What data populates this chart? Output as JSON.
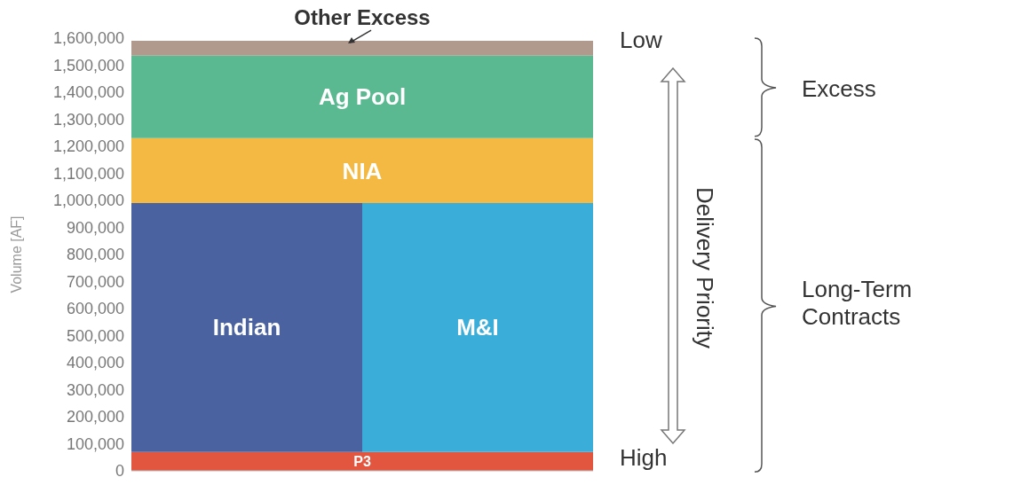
{
  "chart_data": {
    "type": "bar",
    "stacked": true,
    "ylabel": "Volume [AF]",
    "categories": [
      null,
      null
    ],
    "ylim": [
      0,
      1600000
    ],
    "yticks": [
      0,
      {
        "value": 100000,
        "label": "100,000"
      },
      {
        "value": 200000,
        "label": "200,000"
      },
      {
        "value": 300000,
        "label": "300,000"
      },
      {
        "value": 400000,
        "label": "400,000"
      },
      {
        "value": 500000,
        "label": "500,000"
      },
      {
        "value": 600000,
        "label": "600,000"
      },
      {
        "value": 700000,
        "label": "700,000"
      },
      {
        "value": 800000,
        "label": "800,000"
      },
      {
        "value": 900000,
        "label": "900,000"
      },
      {
        "value": 1000000,
        "label": "1,000,000"
      },
      {
        "value": 1100000,
        "label": "1,100,000"
      },
      {
        "value": 1200000,
        "label": "1,200,000"
      },
      {
        "value": 1300000,
        "label": "1,300,000"
      },
      {
        "value": 1400000,
        "label": "1,400,000"
      },
      {
        "value": 1500000,
        "label": "1,500,000"
      },
      {
        "value": 1600000,
        "label": "1,600,000"
      }
    ],
    "tick_labels": "y",
    "legend": false,
    "grid": false,
    "series": [
      {
        "name": "P3",
        "color": "#e2553f",
        "values": [
          70000,
          70000
        ]
      },
      {
        "name": "Indian",
        "color": "#4a62a0",
        "values": [
          920000,
          null
        ]
      },
      {
        "name": "M&I",
        "color": "#3badd9",
        "values": [
          null,
          920000
        ]
      },
      {
        "name": "NIA",
        "color": "#f3b942",
        "values": [
          240000,
          240000
        ]
      },
      {
        "name": "Ag Pool",
        "color": "#5bb991",
        "values": [
          305000,
          305000
        ]
      },
      {
        "name": "Other Excess",
        "color": "#b09a8e",
        "values": [
          55000,
          55000
        ]
      }
    ],
    "annotations": [
      "Low",
      "High",
      "Delivery Priority",
      "Excess",
      "Long-Term Contracts"
    ]
  }
}
